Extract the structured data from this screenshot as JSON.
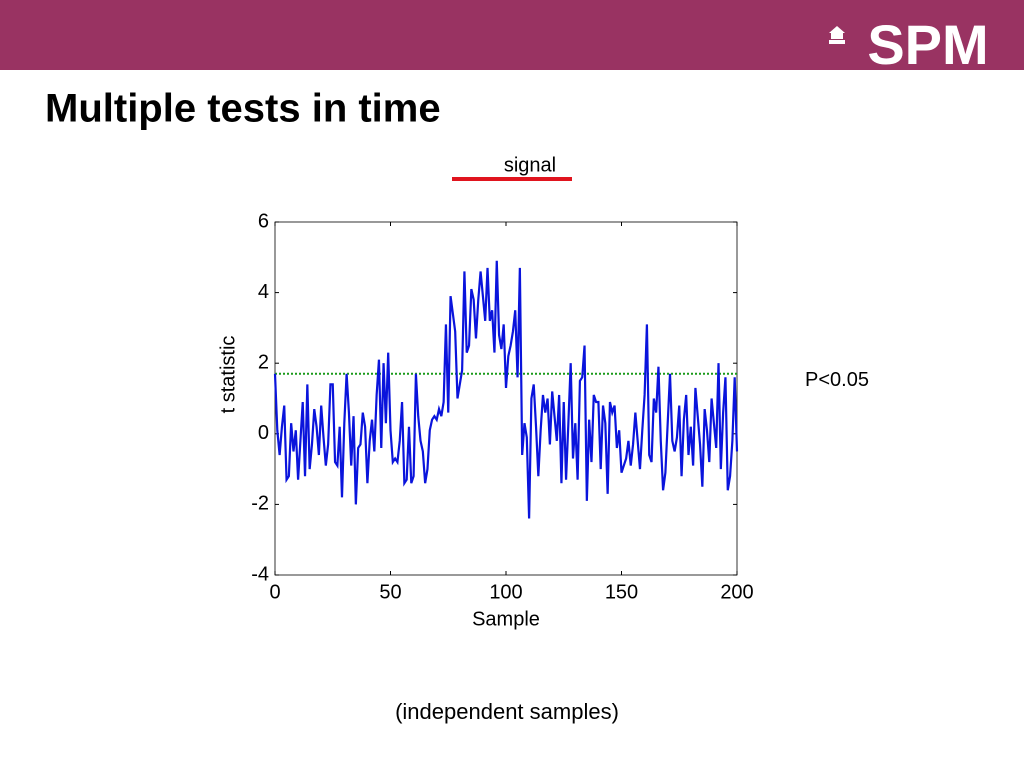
{
  "header": {
    "logo": "SPM"
  },
  "slide_title": "Multiple tests in time",
  "caption": "(independent samples)",
  "chart_data": {
    "type": "line",
    "xlabel": "Sample",
    "ylabel": "t statistic",
    "legend": {
      "label": "signal",
      "color": "#e0141e"
    },
    "threshold": {
      "value": 1.7,
      "label": "P<0.05",
      "color": "#1a9a1a"
    },
    "xlim": [
      0,
      200
    ],
    "xticks": [
      0,
      50,
      100,
      150,
      200
    ],
    "ylim": [
      -4,
      6
    ],
    "yticks": [
      -4,
      -2,
      0,
      2,
      4,
      6
    ],
    "grid": false,
    "x": [
      0,
      1,
      2,
      3,
      4,
      5,
      6,
      7,
      8,
      9,
      10,
      11,
      12,
      13,
      14,
      15,
      16,
      17,
      18,
      19,
      20,
      21,
      22,
      23,
      24,
      25,
      26,
      27,
      28,
      29,
      30,
      31,
      32,
      33,
      34,
      35,
      36,
      37,
      38,
      39,
      40,
      41,
      42,
      43,
      44,
      45,
      46,
      47,
      48,
      49,
      50,
      51,
      52,
      53,
      54,
      55,
      56,
      57,
      58,
      59,
      60,
      61,
      62,
      63,
      64,
      65,
      66,
      67,
      68,
      69,
      70,
      71,
      72,
      73,
      74,
      75,
      76,
      77,
      78,
      79,
      80,
      81,
      82,
      83,
      84,
      85,
      86,
      87,
      88,
      89,
      90,
      91,
      92,
      93,
      94,
      95,
      96,
      97,
      98,
      99,
      100,
      101,
      102,
      103,
      104,
      105,
      106,
      107,
      108,
      109,
      110,
      111,
      112,
      113,
      114,
      115,
      116,
      117,
      118,
      119,
      120,
      121,
      122,
      123,
      124,
      125,
      126,
      127,
      128,
      129,
      130,
      131,
      132,
      133,
      134,
      135,
      136,
      137,
      138,
      139,
      140,
      141,
      142,
      143,
      144,
      145,
      146,
      147,
      148,
      149,
      150,
      151,
      152,
      153,
      154,
      155,
      156,
      157,
      158,
      159,
      160,
      161,
      162,
      163,
      164,
      165,
      166,
      167,
      168,
      169,
      170,
      171,
      172,
      173,
      174,
      175,
      176,
      177,
      178,
      179,
      180,
      181,
      182,
      183,
      184,
      185,
      186,
      187,
      188,
      189,
      190,
      191,
      192,
      193,
      194,
      195,
      196,
      197,
      198,
      199,
      200
    ],
    "series": [
      {
        "name": "t statistic",
        "color": "#0a14dc",
        "values": [
          1.7,
          0.1,
          -0.6,
          0.2,
          0.8,
          -1.3,
          -1.2,
          0.3,
          -0.5,
          0.1,
          -1.3,
          -0.2,
          0.9,
          -1.2,
          1.4,
          -1.0,
          -0.3,
          0.7,
          0.2,
          -0.6,
          0.8,
          -0.1,
          -0.9,
          -0.3,
          1.4,
          1.4,
          -0.8,
          -0.9,
          0.2,
          -1.8,
          0.3,
          1.7,
          0.6,
          -0.9,
          0.5,
          -2.0,
          -0.4,
          -0.3,
          0.6,
          0.2,
          -1.4,
          -0.2,
          0.4,
          -0.5,
          1.1,
          2.1,
          -0.4,
          2.0,
          0.3,
          2.3,
          0.1,
          -0.8,
          -0.7,
          -0.8,
          -0.2,
          0.9,
          -1.4,
          -1.3,
          0.2,
          -1.4,
          -1.2,
          1.7,
          0.5,
          -0.2,
          -0.5,
          -1.4,
          -1.0,
          0.1,
          0.4,
          0.5,
          0.4,
          0.7,
          0.5,
          0.9,
          3.1,
          0.6,
          3.9,
          3.4,
          2.9,
          1.0,
          1.4,
          1.8,
          4.6,
          2.3,
          2.5,
          4.1,
          3.8,
          2.7,
          3.8,
          4.6,
          3.9,
          3.2,
          4.7,
          3.2,
          3.5,
          2.3,
          4.9,
          2.8,
          2.4,
          3.1,
          1.3,
          2.2,
          2.5,
          2.9,
          3.5,
          1.6,
          4.7,
          -0.6,
          0.3,
          -0.1,
          -2.4,
          1.0,
          1.4,
          0.2,
          -1.2,
          0.1,
          1.1,
          0.6,
          1.0,
          -0.3,
          1.2,
          0.5,
          -0.2,
          1.1,
          -1.4,
          0.9,
          -1.3,
          0.3,
          2.0,
          -0.7,
          0.3,
          -1.3,
          1.5,
          1.6,
          2.5,
          -1.9,
          0.4,
          -0.8,
          1.1,
          0.9,
          0.9,
          -1.0,
          0.8,
          0.3,
          -1.7,
          0.9,
          0.6,
          0.8,
          -0.4,
          0.1,
          -1.1,
          -0.9,
          -0.7,
          -0.2,
          -0.9,
          -0.3,
          0.6,
          -0.2,
          -1.0,
          0.1,
          1.1,
          3.1,
          -0.6,
          -0.8,
          1.0,
          0.6,
          1.9,
          -0.2,
          -1.6,
          -1.1,
          0.3,
          1.7,
          -0.2,
          -0.5,
          -0.1,
          0.8,
          -1.2,
          0.4,
          1.1,
          -0.6,
          0.2,
          -0.9,
          1.3,
          0.5,
          -0.3,
          -1.5,
          0.7,
          0.1,
          -0.8,
          1.0,
          0.3,
          -0.4,
          2.0,
          -1.0,
          0.6,
          1.6,
          -1.6,
          -1.2,
          -0.2,
          1.6,
          -0.5
        ]
      }
    ]
  }
}
